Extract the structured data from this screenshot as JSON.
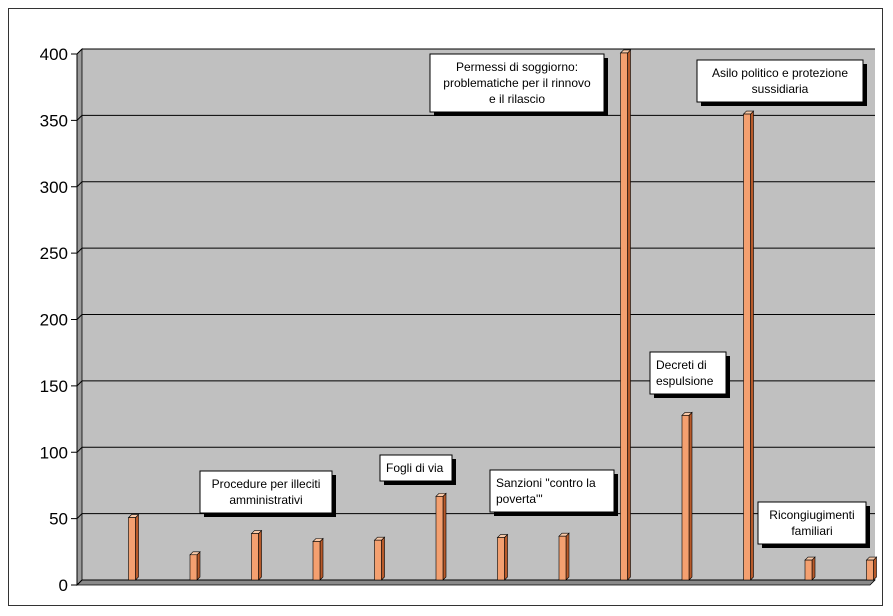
{
  "chart_data": {
    "type": "bar",
    "title": "",
    "xlabel": "",
    "ylabel": "",
    "ylim": [
      0,
      400
    ],
    "yticks": [
      0,
      50,
      100,
      150,
      200,
      250,
      300,
      350,
      400
    ],
    "grid": true,
    "legend": "none",
    "colors": {
      "plot_background": "#c0c0c0",
      "bar_front": "#f4a070",
      "bar_side": "#b85a2a",
      "bar_top": "#f9c9a8",
      "gridline": "#000000",
      "annotation_box": "#ffffff"
    },
    "values": [
      47,
      19,
      35,
      29,
      30,
      63,
      32,
      33,
      397,
      124,
      351,
      15,
      15
    ],
    "annotations": [
      {
        "bar_index": 2,
        "lines": [
          "Procedure per illeciti",
          "amministrativi"
        ]
      },
      {
        "bar_index": 5,
        "lines": [
          "Fogli di via"
        ]
      },
      {
        "bar_index": 7,
        "lines": [
          "Sanzioni \"contro la",
          "poverta'\""
        ]
      },
      {
        "bar_index": 8,
        "lines": [
          "Permessi di soggiorno:",
          "problematiche per il rinnovo",
          "e il rilascio"
        ]
      },
      {
        "bar_index": 9,
        "lines": [
          "Decreti di",
          "espulsione"
        ]
      },
      {
        "bar_index": 10,
        "lines": [
          "Asilo politico e protezione",
          "sussidiaria"
        ]
      },
      {
        "bar_index": 11,
        "lines": [
          "Ricongiugimenti",
          "familiari"
        ]
      }
    ]
  }
}
